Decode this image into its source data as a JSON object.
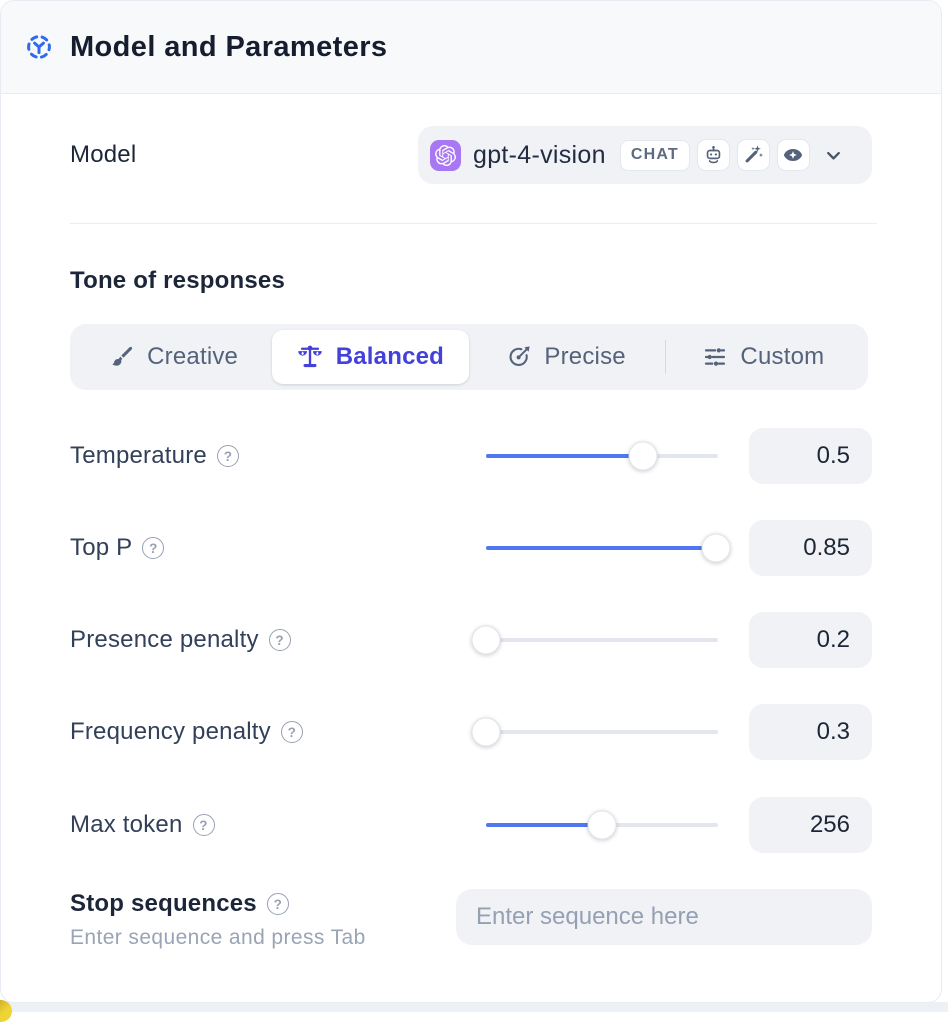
{
  "panel": {
    "title": "Model and Parameters"
  },
  "model_row": {
    "label": "Model",
    "model_name": "gpt-4-vision",
    "badge": "CHAT",
    "capabilities": [
      "plugins",
      "prompt-improver",
      "vision"
    ]
  },
  "tone": {
    "heading": "Tone of responses",
    "options": [
      {
        "label": "Creative",
        "icon": "paintbrush-icon",
        "selected": false
      },
      {
        "label": "Balanced",
        "icon": "balance-scale-icon",
        "selected": true
      },
      {
        "label": "Precise",
        "icon": "target-icon",
        "selected": false
      },
      {
        "label": "Custom",
        "icon": "sliders-icon",
        "selected": false
      }
    ]
  },
  "parameters": [
    {
      "label": "Temperature",
      "value": "0.5",
      "fill_pct": 67.7
    },
    {
      "label": "Top P",
      "value": "0.85",
      "fill_pct": 99.1
    },
    {
      "label": "Presence penalty",
      "value": "0.2",
      "fill_pct": 0
    },
    {
      "label": "Frequency penalty",
      "value": "0.3",
      "fill_pct": 0
    },
    {
      "label": "Max token",
      "value": "256",
      "fill_pct": 50
    }
  ],
  "stop_sequences": {
    "label": "Stop sequences",
    "caption": "Enter sequence and press Tab",
    "placeholder": "Enter sequence here"
  },
  "icons": {
    "help_glyph": "?"
  },
  "colors": {
    "accent_indigo": "#4441da",
    "slider_blue": "#5077f2",
    "avatar_purple": "#a877f3",
    "header_icon_blue": "#2e6bed",
    "corner_accent_yellow": "#eed435"
  }
}
